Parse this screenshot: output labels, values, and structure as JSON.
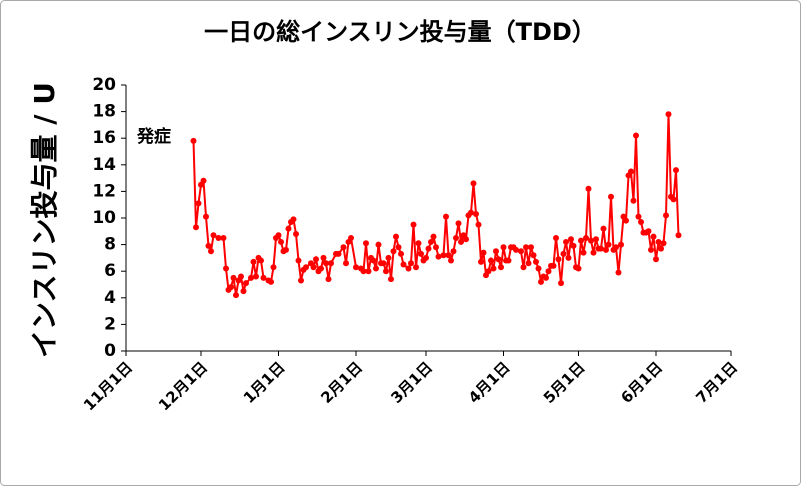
{
  "chart_data": {
    "type": "line",
    "title": "一日の総インスリン投与量（TDD）",
    "y_label": "インスリン投与量 / U",
    "annotation": "発症",
    "color": "#ff0000",
    "xlim": [
      "11月1日",
      "7月1日"
    ],
    "xticks": [
      "11月1日",
      "12月1日",
      "1月1日",
      "2月1日",
      "3月1日",
      "4月1日",
      "5月1日",
      "6月1日",
      "7月1日"
    ],
    "ylim": [
      0,
      20
    ],
    "yticks": [
      0,
      2,
      4,
      6,
      8,
      10,
      12,
      14,
      16,
      18,
      20
    ],
    "x": [
      "11月28日",
      "11月29日",
      "11月30日",
      "12月1日",
      "12月2日",
      "12月3日",
      "12月4日",
      "12月5日",
      "12月6日",
      "12月8日",
      "12月10日",
      "12月11日",
      "12月12日",
      "12月13日",
      "12月14日",
      "12月15日",
      "12月16日",
      "12月17日",
      "12月18日",
      "12月19日",
      "12月21日",
      "12月22日",
      "12月23日",
      "12月24日",
      "12月25日",
      "12月26日",
      "12月28日",
      "12月29日",
      "12月30日",
      "12月31日",
      "1月1日",
      "1月2日",
      "1月3日",
      "1月4日",
      "1月5日",
      "1月6日",
      "1月7日",
      "1月8日",
      "1月9日",
      "1月10日",
      "1月11日",
      "1月12日",
      "1月14日",
      "1月15日",
      "1月16日",
      "1月17日",
      "1月18日",
      "1月19日",
      "1月20日",
      "1月21日",
      "1月22日",
      "1月24日",
      "1月25日",
      "1月27日",
      "1月28日",
      "1月29日",
      "1月30日",
      "2月1日",
      "2月3日",
      "2月4日",
      "2月5日",
      "2月6日",
      "2月7日",
      "2月8日",
      "2月9日",
      "2月10日",
      "2月11日",
      "2月12日",
      "2月13日",
      "2月14日",
      "2月15日",
      "2月16日",
      "2月17日",
      "2月18日",
      "2月19日",
      "2月20日",
      "2月22日",
      "2月23日",
      "2月24日",
      "2月25日",
      "2月26日",
      "2月27日",
      "2月28日",
      "3月1日",
      "3月2日",
      "3月3日",
      "3月4日",
      "3月5日",
      "3月6日",
      "3月8日",
      "3月9日",
      "3月10日",
      "3月11日",
      "3月12日",
      "3月13日",
      "3月14日",
      "3月15日",
      "3月16日",
      "3月17日",
      "3月18日",
      "3月19日",
      "3月20日",
      "3月21日",
      "3月22日",
      "3月23日",
      "3月24日",
      "3月25日",
      "3月26日",
      "3月27日",
      "3月28日",
      "3月29日",
      "3月30日",
      "3月31日",
      "4月1日",
      "4月2日",
      "4月3日",
      "4月4日",
      "4月5日",
      "4月6日",
      "4月8日",
      "4月9日",
      "4月10日",
      "4月11日",
      "4月12日",
      "4月13日",
      "4月14日",
      "4月15日",
      "4月16日",
      "4月17日",
      "4月18日",
      "4月19日",
      "4月20日",
      "4月21日",
      "4月22日",
      "4月23日",
      "4月24日",
      "4月25日",
      "4月26日",
      "4月27日",
      "4月28日",
      "4月29日",
      "4月30日",
      "5月1日",
      "5月2日",
      "5月3日",
      "5月4日",
      "5月5日",
      "5月6日",
      "5月7日",
      "5月8日",
      "5月9日",
      "5月10日",
      "5月11日",
      "5月12日",
      "5月13日",
      "5月14日",
      "5月15日",
      "5月16日",
      "5月17日",
      "5月18日",
      "5月19日",
      "5月20日",
      "5月21日",
      "5月22日",
      "5月23日",
      "5月24日",
      "5月25日",
      "5月26日",
      "5月27日",
      "5月28日",
      "5月29日",
      "5月30日",
      "5月31日",
      "6月1日",
      "6月2日",
      "6月3日",
      "6月4日",
      "6月5日",
      "6月6日",
      "6月7日",
      "6月8日",
      "6月9日",
      "6月10日"
    ],
    "values": [
      15.8,
      9.3,
      11.1,
      12.5,
      12.8,
      10.1,
      7.9,
      7.5,
      8.7,
      8.5,
      8.5,
      6.2,
      4.6,
      4.8,
      5.5,
      4.2,
      5.3,
      5.6,
      4.5,
      5.1,
      5.5,
      6.7,
      5.6,
      7.0,
      6.8,
      5.5,
      5.3,
      5.2,
      6.3,
      8.5,
      8.7,
      8.2,
      7.5,
      7.6,
      9.2,
      9.7,
      9.9,
      8.8,
      6.8,
      5.3,
      6.1,
      6.3,
      6.6,
      6.3,
      6.9,
      6.0,
      6.2,
      7.0,
      6.6,
      5.4,
      6.6,
      7.3,
      7.3,
      7.8,
      6.6,
      8.2,
      8.5,
      6.3,
      6.2,
      6.0,
      8.1,
      6.0,
      7.0,
      6.8,
      6.2,
      8.0,
      6.6,
      6.6,
      6.0,
      7.0,
      5.4,
      7.5,
      8.6,
      7.8,
      7.3,
      6.5,
      6.2,
      6.6,
      9.5,
      6.3,
      8.1,
      7.3,
      6.8,
      7.0,
      7.7,
      8.2,
      8.6,
      7.8,
      7.1,
      7.2,
      10.1,
      7.2,
      6.8,
      7.5,
      8.5,
      9.6,
      8.2,
      8.7,
      8.4,
      10.2,
      10.4,
      12.6,
      10.3,
      9.5,
      6.7,
      7.4,
      5.7,
      6.0,
      6.8,
      6.2,
      7.5,
      6.9,
      6.3,
      7.8,
      6.8,
      6.8,
      7.8,
      7.8,
      7.6,
      7.5,
      6.3,
      7.8,
      6.6,
      7.8,
      7.2,
      6.7,
      6.2,
      5.2,
      5.6,
      5.5,
      6.0,
      6.4,
      6.4,
      8.5,
      6.9,
      5.1,
      7.3,
      8.2,
      7.0,
      8.4,
      7.9,
      6.3,
      6.2,
      8.3,
      7.4,
      8.5,
      12.2,
      8.3,
      7.4,
      8.4,
      7.7,
      7.7,
      9.2,
      7.6,
      8.0,
      11.6,
      7.6,
      7.8,
      5.9,
      8.0,
      10.1,
      9.8,
      13.2,
      13.5,
      11.3,
      16.2,
      10.1,
      9.7,
      8.9,
      8.9,
      9.0,
      7.6,
      8.6,
      6.9,
      8.2,
      7.7,
      8.1,
      10.2,
      17.8,
      11.6,
      11.4,
      13.6,
      8.7
    ]
  }
}
